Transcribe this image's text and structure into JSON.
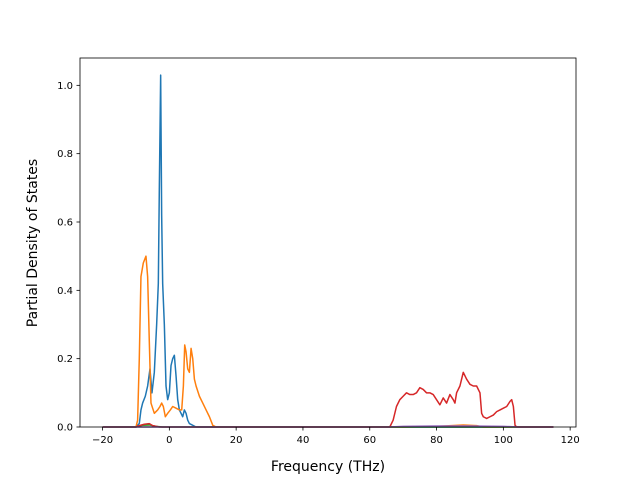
{
  "chart_data": {
    "type": "line",
    "title": "",
    "xlabel": "Frequency (THz)",
    "ylabel": "Partial Density of States",
    "xlim": [
      -26.75,
      121.75
    ],
    "ylim": [
      0,
      1.08
    ],
    "xticks": [
      -20,
      0,
      20,
      40,
      60,
      80,
      100,
      120
    ],
    "yticks": [
      0.0,
      0.2,
      0.4,
      0.6,
      0.8,
      1.0
    ],
    "xtick_labels": [
      "−20",
      "0",
      "20",
      "40",
      "60",
      "80",
      "100",
      "120"
    ],
    "ytick_labels": [
      "0.0",
      "0.2",
      "0.4",
      "0.6",
      "0.8",
      "1.0"
    ],
    "grid": false,
    "legend": "none",
    "series": [
      {
        "color": "#1f77b4",
        "points": [
          [
            -20,
            0
          ],
          [
            -10,
            0
          ],
          [
            -9,
            0.01
          ],
          [
            -8.5,
            0.05
          ],
          [
            -8,
            0.07
          ],
          [
            -7.2,
            0.09
          ],
          [
            -6.5,
            0.12
          ],
          [
            -5.8,
            0.17
          ],
          [
            -5.2,
            0.1
          ],
          [
            -4.5,
            0.16
          ],
          [
            -3.8,
            0.3
          ],
          [
            -3.3,
            0.42
          ],
          [
            -3.0,
            0.7
          ],
          [
            -2.6,
            1.03
          ],
          [
            -2.3,
            0.62
          ],
          [
            -2.0,
            0.42
          ],
          [
            -1.5,
            0.3
          ],
          [
            -1,
            0.12
          ],
          [
            -0.5,
            0.08
          ],
          [
            0,
            0.1
          ],
          [
            0.5,
            0.18
          ],
          [
            1,
            0.2
          ],
          [
            1.5,
            0.21
          ],
          [
            2,
            0.15
          ],
          [
            2.5,
            0.08
          ],
          [
            3,
            0.05
          ],
          [
            3.5,
            0.04
          ],
          [
            4,
            0.03
          ],
          [
            4.5,
            0.05
          ],
          [
            5,
            0.04
          ],
          [
            5.5,
            0.02
          ],
          [
            6,
            0.01
          ],
          [
            8,
            0
          ],
          [
            115,
            0
          ]
        ]
      },
      {
        "color": "#ff7f0e",
        "points": [
          [
            -20,
            0
          ],
          [
            -10,
            0
          ],
          [
            -9.5,
            0.02
          ],
          [
            -9,
            0.2
          ],
          [
            -8.5,
            0.44
          ],
          [
            -7.8,
            0.48
          ],
          [
            -7,
            0.5
          ],
          [
            -6.5,
            0.44
          ],
          [
            -6,
            0.25
          ],
          [
            -5.5,
            0.07
          ],
          [
            -4.5,
            0.04
          ],
          [
            -3.5,
            0.05
          ],
          [
            -2.8,
            0.06
          ],
          [
            -2.3,
            0.07
          ],
          [
            -1.8,
            0.06
          ],
          [
            -1.2,
            0.03
          ],
          [
            -0.5,
            0.04
          ],
          [
            0.3,
            0.05
          ],
          [
            1,
            0.06
          ],
          [
            2,
            0.055
          ],
          [
            3,
            0.05
          ],
          [
            3.7,
            0.05
          ],
          [
            4.2,
            0.12
          ],
          [
            4.6,
            0.24
          ],
          [
            5,
            0.22
          ],
          [
            5.5,
            0.17
          ],
          [
            6,
            0.16
          ],
          [
            6.5,
            0.23
          ],
          [
            7,
            0.2
          ],
          [
            7.5,
            0.14
          ],
          [
            8,
            0.12
          ],
          [
            9,
            0.09
          ],
          [
            10,
            0.07
          ],
          [
            11,
            0.05
          ],
          [
            12,
            0.03
          ],
          [
            13,
            0.005
          ],
          [
            14,
            0
          ],
          [
            70,
            0
          ],
          [
            80,
            0.002
          ],
          [
            88,
            0.006
          ],
          [
            92,
            0.004
          ],
          [
            94,
            0
          ],
          [
            115,
            0
          ]
        ]
      },
      {
        "color": "#2ca02c",
        "points": [
          [
            -20,
            0
          ],
          [
            -10,
            0
          ],
          [
            -9,
            0.003
          ],
          [
            -8,
            0.005
          ],
          [
            -6,
            0.006
          ],
          [
            -4,
            0.002
          ],
          [
            -2,
            0
          ],
          [
            115,
            0
          ]
        ]
      },
      {
        "color": "#d62728",
        "points": [
          [
            -20,
            0
          ],
          [
            -10,
            0
          ],
          [
            -9,
            0.004
          ],
          [
            -7.5,
            0.008
          ],
          [
            -6,
            0.01
          ],
          [
            -5,
            0.004
          ],
          [
            -3,
            0
          ],
          [
            66,
            0
          ],
          [
            67,
            0.02
          ],
          [
            68,
            0.06
          ],
          [
            69,
            0.08
          ],
          [
            70,
            0.09
          ],
          [
            71,
            0.1
          ],
          [
            72,
            0.095
          ],
          [
            73,
            0.095
          ],
          [
            74,
            0.1
          ],
          [
            75,
            0.115
          ],
          [
            76,
            0.11
          ],
          [
            77,
            0.1
          ],
          [
            78,
            0.1
          ],
          [
            79,
            0.095
          ],
          [
            80,
            0.08
          ],
          [
            81,
            0.065
          ],
          [
            82,
            0.085
          ],
          [
            83,
            0.07
          ],
          [
            84,
            0.095
          ],
          [
            85,
            0.08
          ],
          [
            85.5,
            0.07
          ],
          [
            86,
            0.1
          ],
          [
            87,
            0.12
          ],
          [
            88,
            0.16
          ],
          [
            89,
            0.14
          ],
          [
            90,
            0.125
          ],
          [
            91,
            0.12
          ],
          [
            92,
            0.12
          ],
          [
            93,
            0.1
          ],
          [
            93.5,
            0.04
          ],
          [
            94,
            0.03
          ],
          [
            95,
            0.025
          ],
          [
            96,
            0.03
          ],
          [
            97,
            0.035
          ],
          [
            98,
            0.045
          ],
          [
            99,
            0.05
          ],
          [
            100,
            0.055
          ],
          [
            101,
            0.06
          ],
          [
            102,
            0.075
          ],
          [
            102.5,
            0.08
          ],
          [
            103,
            0.06
          ],
          [
            103.5,
            0.005
          ],
          [
            104,
            0
          ],
          [
            115,
            0
          ]
        ]
      },
      {
        "color": "#9467bd",
        "points": [
          [
            -20,
            0
          ],
          [
            66,
            0
          ],
          [
            70,
            0.002
          ],
          [
            80,
            0.003
          ],
          [
            90,
            0.003
          ],
          [
            100,
            0.002
          ],
          [
            104,
            0
          ],
          [
            115,
            0
          ]
        ]
      }
    ]
  }
}
